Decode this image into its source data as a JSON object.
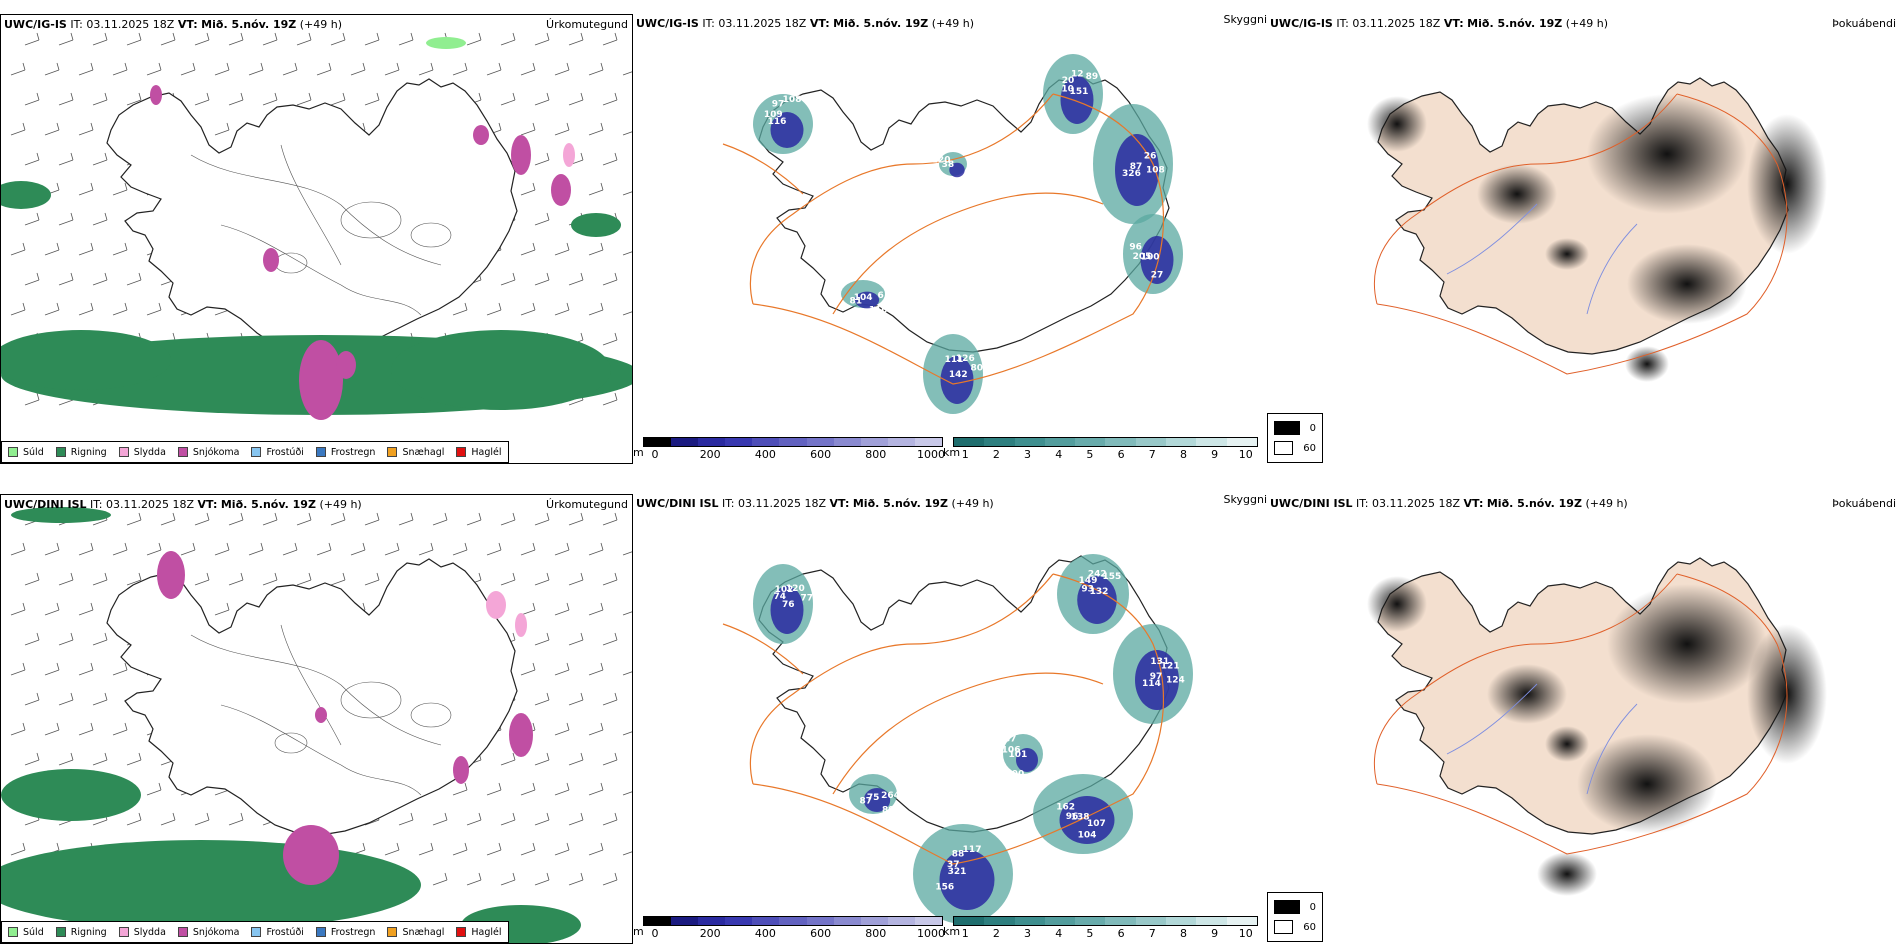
{
  "rows": [
    {
      "panels": [
        {
          "id": "precip",
          "model": "UWC/IG-IS",
          "it_label": "IT:",
          "it_value": "03.11.2025 18Z",
          "vt_label": "VT:",
          "vt_value": "Mið. 5.nóv. 19Z",
          "lead": "(+49 h)",
          "right_title": "Úrkomutegund"
        },
        {
          "id": "visibility",
          "model": "UWC/IG-IS",
          "it_label": "IT:",
          "it_value": "03.11.2025 18Z",
          "vt_label": "VT:",
          "vt_value": "Mið. 5.nóv. 19Z",
          "lead": "(+49 h)",
          "right_title": "Skyggni",
          "labels": [
            "151",
            "326",
            "96",
            "108",
            "142",
            "81",
            "91",
            "89",
            "87",
            "205",
            "97",
            "80",
            "104",
            "120",
            "12",
            "108",
            "100",
            "109",
            "126",
            "110",
            "38",
            "20",
            "26",
            "27",
            "116",
            "111",
            "6",
            "18",
            "10"
          ]
        },
        {
          "id": "fog",
          "model": "UWC/IG-IS",
          "it_label": "IT:",
          "it_value": "03.11.2025 18Z",
          "vt_label": "VT:",
          "vt_value": "Mið. 5.nóv. 19Z",
          "lead": "(+49 h)",
          "right_title": "Þokuábendi"
        }
      ]
    },
    {
      "panels": [
        {
          "id": "precip",
          "model": "UWC/DINI ISL",
          "it_label": "IT:",
          "it_value": "03.11.2025 18Z",
          "vt_label": "VT:",
          "vt_value": "Mið. 5.nóv. 19Z",
          "lead": "(+49 h)",
          "right_title": "Úrkomutegund"
        },
        {
          "id": "visibility",
          "model": "UWC/DINI ISL",
          "it_label": "IT:",
          "it_value": "03.11.2025 18Z",
          "vt_label": "VT:",
          "vt_value": "Mið. 5.nóv. 19Z",
          "lead": "(+49 h)",
          "right_title": "Skyggni",
          "labels": [
            "132",
            "114",
            "162",
            "117",
            "76",
            "87",
            "87",
            "155",
            "97",
            "96",
            "88",
            "77",
            "75",
            "106",
            "242",
            "124",
            "138",
            "37",
            "120",
            "89",
            "101",
            "149",
            "121",
            "104",
            "321",
            "102",
            "264",
            "200",
            "93",
            "131",
            "107",
            "156",
            "74"
          ]
        },
        {
          "id": "fog",
          "model": "UWC/DINI ISL",
          "it_label": "IT:",
          "it_value": "03.11.2025 18Z",
          "vt_label": "VT:",
          "vt_value": "Mið. 5.nóv. 19Z",
          "lead": "(+49 h)",
          "right_title": "Þokuábendi"
        }
      ]
    }
  ],
  "precip_legend": [
    {
      "label": "Súld",
      "color": "#90ee90"
    },
    {
      "label": "Rigning",
      "color": "#2e8b57"
    },
    {
      "label": "Slydda",
      "color": "#f4a6d7"
    },
    {
      "label": "Snjókoma",
      "color": "#c04fa3"
    },
    {
      "label": "Frostúði",
      "color": "#87c5f0"
    },
    {
      "label": "Frostregn",
      "color": "#3a78c0"
    },
    {
      "label": "Snæhagl",
      "color": "#f0a020"
    },
    {
      "label": "Haglél",
      "color": "#e01010"
    }
  ],
  "ceiling_bar": {
    "unit": "m",
    "ticks": [
      "0",
      "200",
      "400",
      "600",
      "800",
      "1000"
    ],
    "colors": [
      "#000000",
      "#1a1a80",
      "#2a2aa0",
      "#3838b0",
      "#4e4eb8",
      "#6262c0",
      "#7474c8",
      "#8a8ad0",
      "#a0a0d8",
      "#b4b4e0",
      "#c8c8e8"
    ]
  },
  "vis_bar": {
    "unit": "km",
    "ticks": [
      "1",
      "2",
      "3",
      "4",
      "5",
      "6",
      "7",
      "8",
      "9",
      "10"
    ],
    "colors": [
      "#1f6e6e",
      "#2e7f7f",
      "#3f8f8f",
      "#539d9d",
      "#68abab",
      "#80baba",
      "#98c8c8",
      "#b2d8d8",
      "#cde6e6",
      "#e6f2f2"
    ]
  },
  "fog_legend": [
    {
      "label": "0",
      "color": "#000000"
    },
    {
      "label": "60",
      "color": "#ffffff"
    }
  ],
  "colors": {
    "rain": "#2e8b57",
    "snow": "#c04fa3",
    "sleet": "#f4a6d7",
    "drizzle": "#90ee90",
    "teal": "#5aa8a0",
    "blue": "#2a2aa0",
    "roads": "#e8782a",
    "land_fog": "#f3dfcf"
  }
}
